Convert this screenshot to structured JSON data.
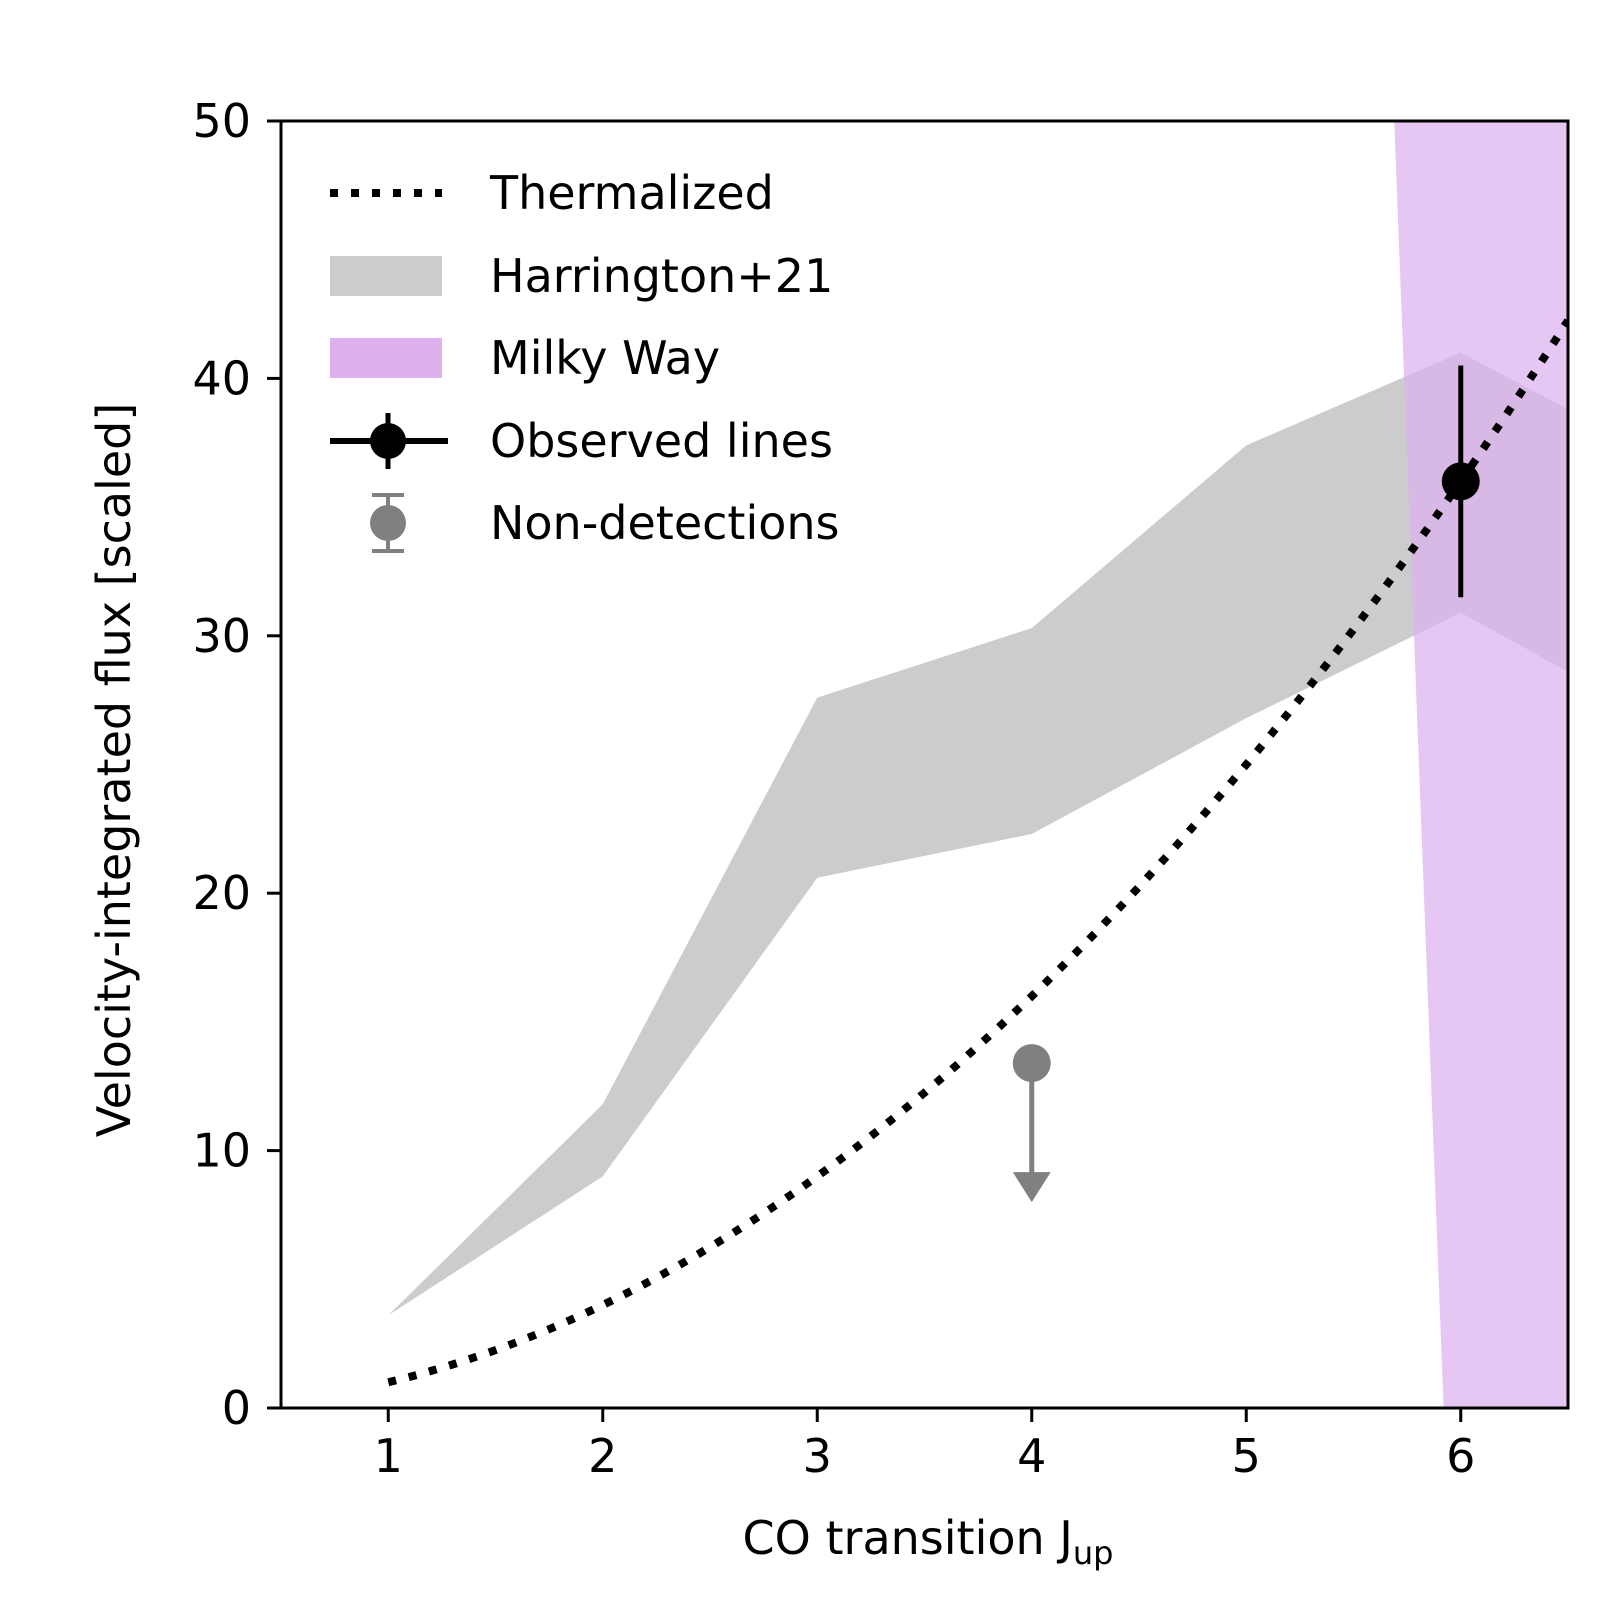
{
  "chart_data": {
    "type": "line",
    "xlabel": "CO transition J",
    "xlabel_sub": "up",
    "ylabel": "Velocity-integrated flux [scaled]",
    "xlim": [
      0.5,
      6.5
    ],
    "ylim": [
      0,
      50
    ],
    "x_ticks": [
      1,
      2,
      3,
      4,
      5,
      6
    ],
    "x_tick_labels": [
      "1",
      "2",
      "3",
      "4",
      "5",
      "6"
    ],
    "y_ticks": [
      0,
      10,
      20,
      30,
      40,
      50
    ],
    "y_tick_labels": [
      "0",
      "10",
      "20",
      "30",
      "40",
      "50"
    ],
    "grid": false,
    "legend_position": "upper-left",
    "colors": {
      "thermalized": "#000000",
      "harrington": "#cccccc",
      "milky_way": "#dcb1ee",
      "observed": "#000000",
      "nondetection": "#808080"
    },
    "series": [
      {
        "name": "Thermalized",
        "style": "dotted",
        "x": [
          1,
          1.5,
          2,
          2.5,
          3,
          3.5,
          4,
          4.5,
          5,
          5.5,
          6,
          6.5
        ],
        "y": [
          1,
          2.25,
          4,
          6.25,
          9,
          12.25,
          16,
          20.25,
          25,
          30.25,
          36,
          42.25
        ]
      },
      {
        "name": "Harrington+21",
        "style": "band",
        "x": [
          1,
          2,
          3,
          4,
          5,
          6,
          6.5
        ],
        "lower": [
          3.6,
          9.0,
          20.6,
          22.3,
          26.8,
          30.9,
          28.6
        ],
        "upper": [
          3.6,
          11.8,
          27.6,
          30.3,
          37.4,
          41.0,
          38.8
        ]
      },
      {
        "name": "Milky Way",
        "style": "band",
        "x": [
          5.92,
          6.5
        ],
        "lower": [
          0,
          0
        ],
        "upper": [
          50,
          50
        ],
        "x_left_at_top": 5.69,
        "x_left_at_bottom": 5.92
      },
      {
        "name": "Observed lines",
        "style": "errorbar",
        "x": [
          6
        ],
        "y": [
          36.0
        ],
        "yerr": [
          4.5
        ]
      },
      {
        "name": "Non-detections",
        "style": "upper-limit",
        "x": [
          4
        ],
        "y": [
          13.4
        ],
        "arrow_to": [
          8.0
        ]
      }
    ]
  }
}
